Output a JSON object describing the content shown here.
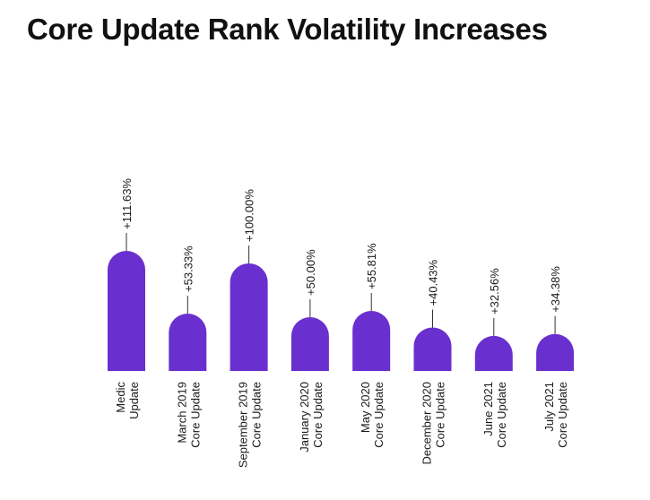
{
  "chart_data": {
    "type": "bar",
    "title": "Core Update Rank Volatility Increases",
    "xlabel": "",
    "ylabel": "",
    "categories": [
      [
        "Medic",
        "Update"
      ],
      [
        "March 2019",
        "Core Update"
      ],
      [
        "September 2019",
        "Core Update"
      ],
      [
        "January 2020",
        "Core Update"
      ],
      [
        "May 2020",
        "Core Update"
      ],
      [
        "December 2020",
        "Core Update"
      ],
      [
        "June 2021",
        "Core Update"
      ],
      [
        "July 2021",
        "Core Update"
      ]
    ],
    "values": [
      111.63,
      53.33,
      100.0,
      50.0,
      55.81,
      40.43,
      32.56,
      34.38
    ],
    "value_labels": [
      "+111.63%",
      "+53.33%",
      "+100.00%",
      "+50.00%",
      "+55.81%",
      "+40.43%",
      "+32.56%",
      "+34.38%"
    ],
    "ylim": [
      0,
      115
    ],
    "grid": false,
    "legend": "none",
    "colors": {
      "bar": "#6a2fcf",
      "text": "#1a1a1a",
      "leader": "#333333"
    }
  }
}
